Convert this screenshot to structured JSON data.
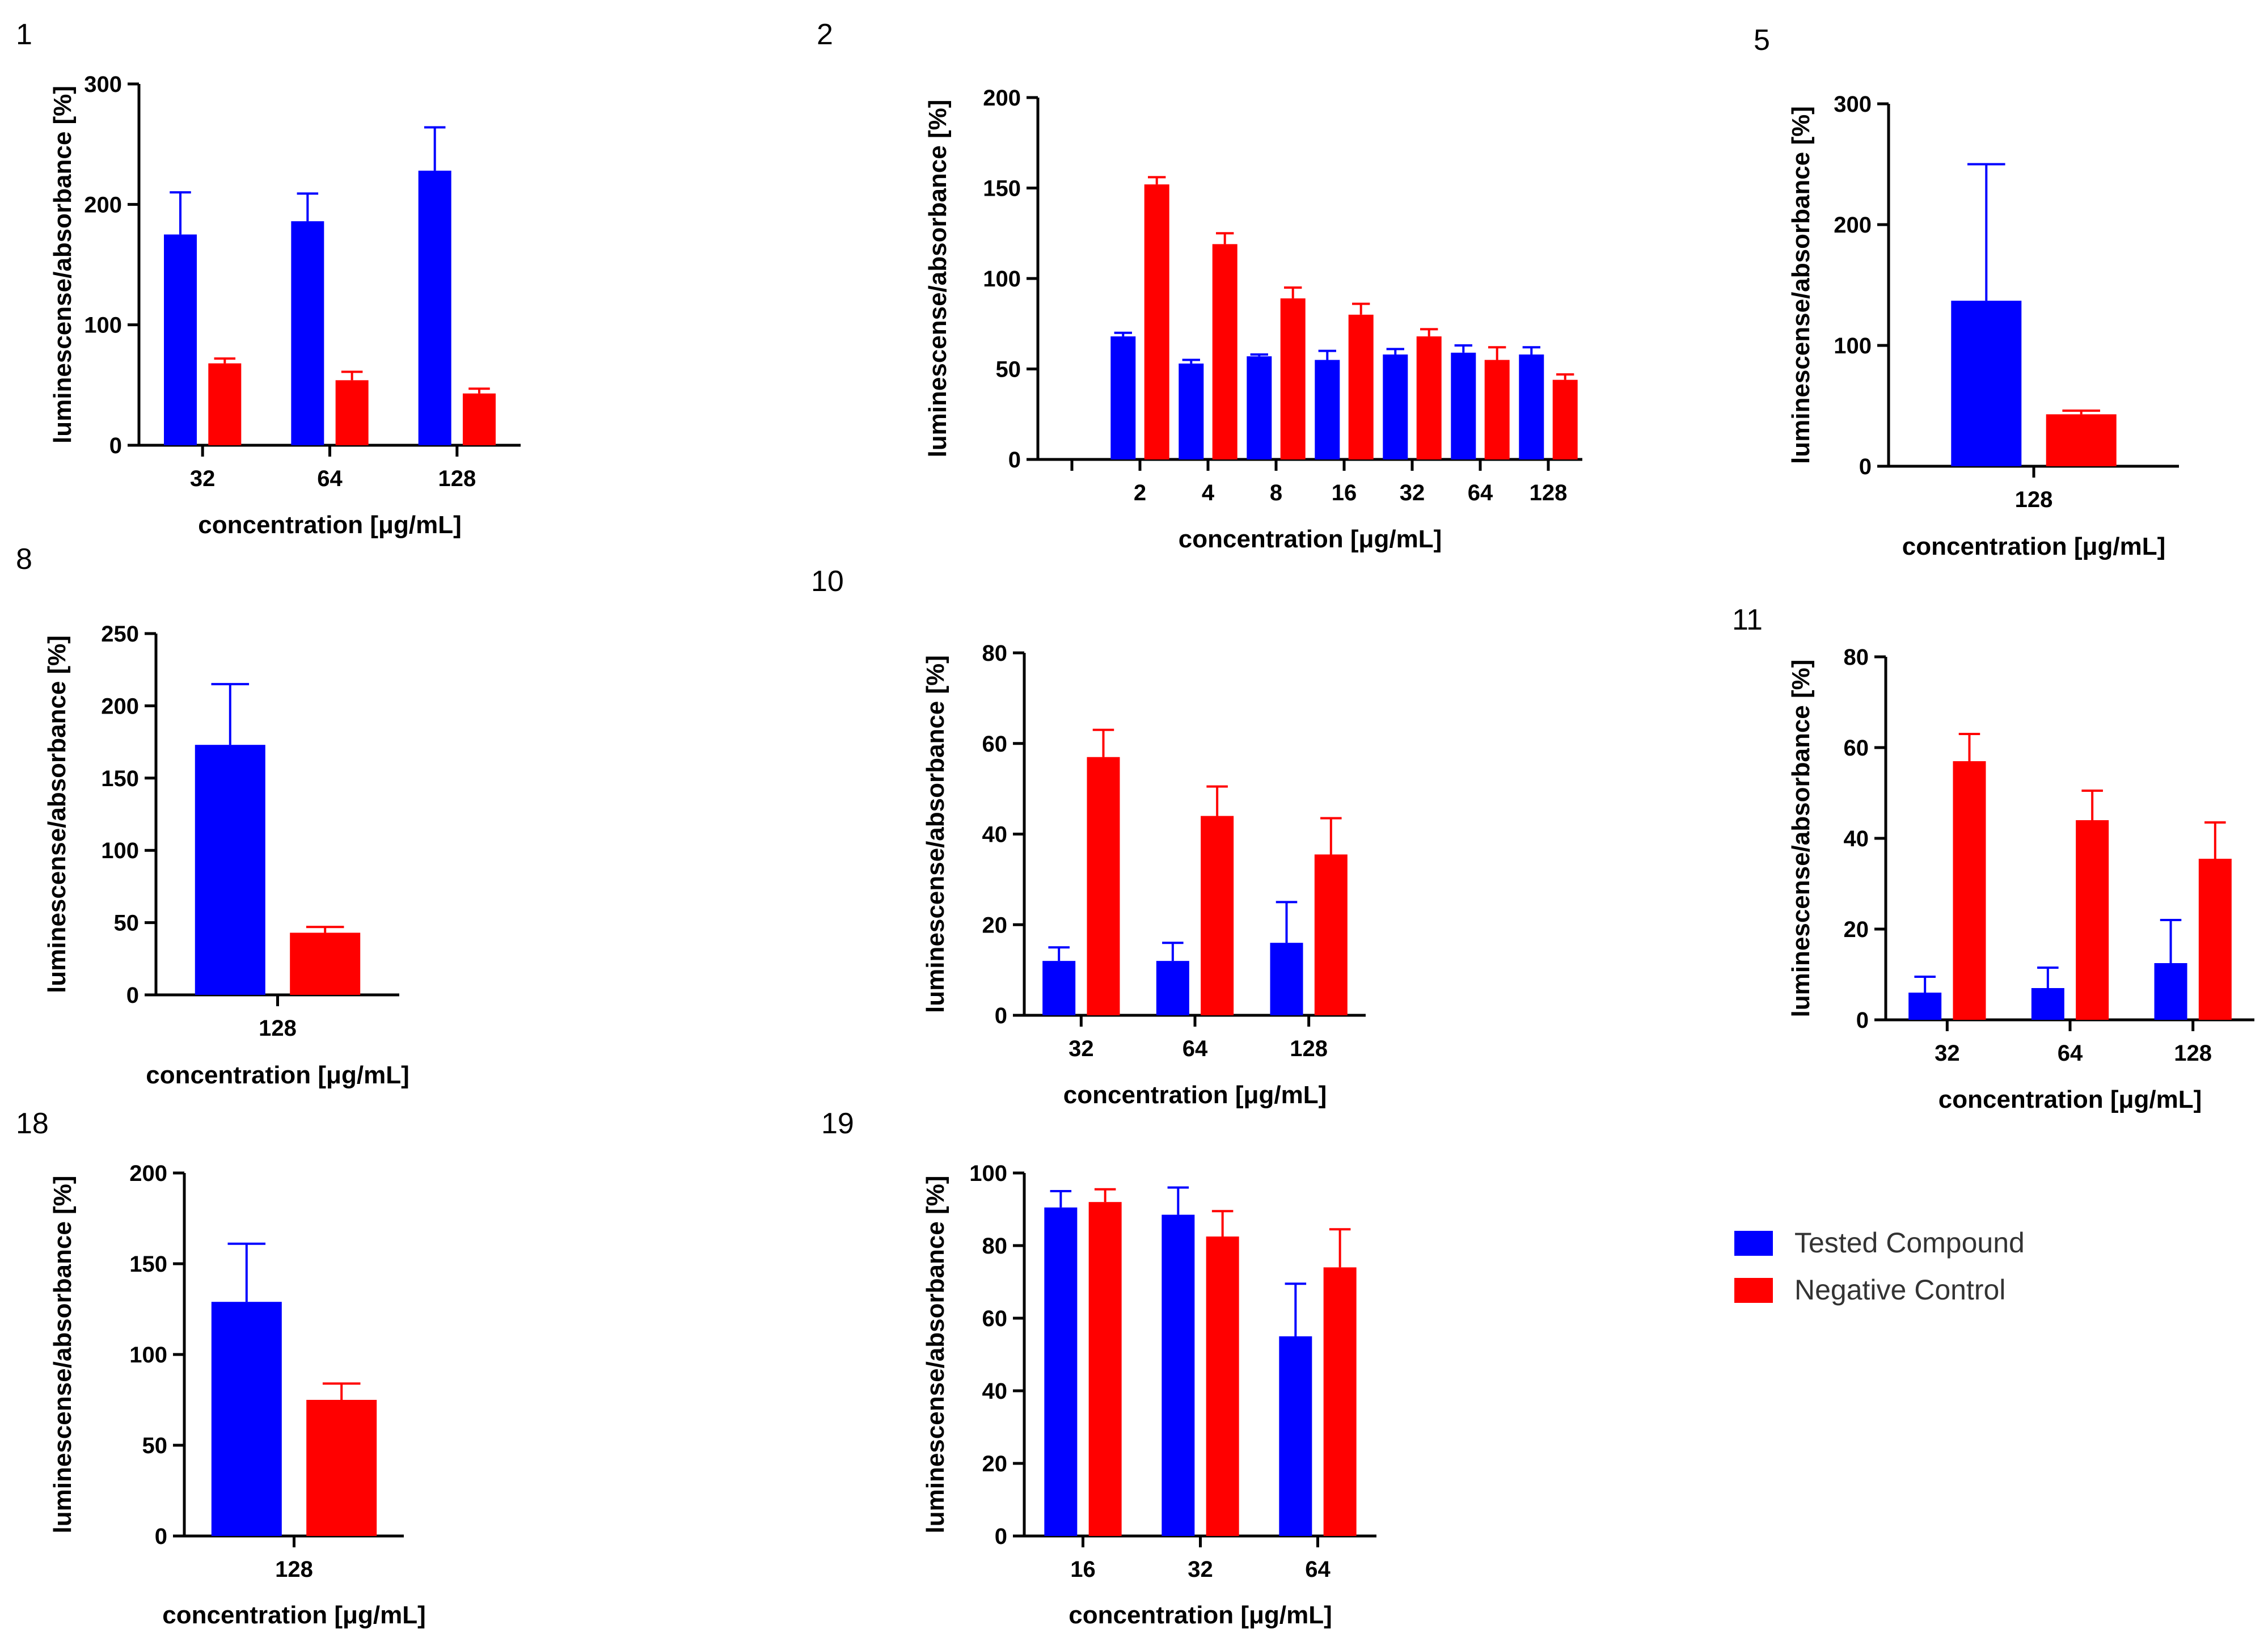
{
  "legend": {
    "items": [
      {
        "label": "Tested Compound",
        "color": "#0000ff"
      },
      {
        "label": "Negative Control",
        "color": "#ff0000"
      }
    ]
  },
  "chart_data": [
    {
      "panel": "1",
      "type": "bar",
      "categories": [
        "32",
        "64",
        "128"
      ],
      "series": [
        {
          "name": "Tested Compound",
          "values": [
            175,
            186,
            228
          ],
          "errors": [
            35,
            23,
            36
          ]
        },
        {
          "name": "Negative Control",
          "values": [
            68,
            54,
            43
          ],
          "errors": [
            4,
            7,
            4
          ]
        }
      ],
      "ylim": [
        0,
        300
      ],
      "yticks": [
        0,
        100,
        200,
        300
      ],
      "xlabel": "concentration [μg/mL]",
      "ylabel": "luminescense/absorbance [%]"
    },
    {
      "panel": "2",
      "type": "bar",
      "categories": [
        "",
        "2",
        "4",
        "8",
        "16",
        "32",
        "64",
        "128"
      ],
      "series": [
        {
          "name": "Tested Compound",
          "values": [
            null,
            68,
            53,
            57,
            55,
            58,
            59,
            58
          ],
          "errors": [
            null,
            2,
            2,
            1,
            5,
            3,
            4,
            4
          ]
        },
        {
          "name": "Negative Control",
          "values": [
            null,
            152,
            119,
            89,
            80,
            68,
            55,
            44
          ],
          "errors": [
            null,
            4,
            6,
            6,
            6,
            4,
            7,
            3
          ]
        }
      ],
      "ylim": [
        0,
        200
      ],
      "yticks": [
        0,
        50,
        100,
        150,
        200
      ],
      "xlabel": "concentration [μg/mL]",
      "ylabel": "luminescense/absorbance [%]"
    },
    {
      "panel": "5",
      "type": "bar",
      "categories": [
        "128"
      ],
      "series": [
        {
          "name": "Tested Compound",
          "values": [
            137
          ],
          "errors": [
            113
          ]
        },
        {
          "name": "Negative Control",
          "values": [
            43
          ],
          "errors": [
            3
          ]
        }
      ],
      "ylim": [
        0,
        300
      ],
      "yticks": [
        0,
        100,
        200,
        300
      ],
      "xlabel": "concentration [μg/mL]",
      "ylabel": "luminescense/absorbance [%]"
    },
    {
      "panel": "8",
      "type": "bar",
      "categories": [
        "128"
      ],
      "series": [
        {
          "name": "Tested Compound",
          "values": [
            173
          ],
          "errors": [
            42
          ]
        },
        {
          "name": "Negative Control",
          "values": [
            43
          ],
          "errors": [
            4
          ]
        }
      ],
      "ylim": [
        0,
        250
      ],
      "yticks": [
        0,
        50,
        100,
        150,
        200,
        250
      ],
      "xlabel": "concentration [μg/mL]",
      "ylabel": "luminescense/absorbance [%]"
    },
    {
      "panel": "10",
      "type": "bar",
      "categories": [
        "32",
        "64",
        "128"
      ],
      "series": [
        {
          "name": "Tested Compound",
          "values": [
            12,
            12,
            16
          ],
          "errors": [
            3,
            4,
            9
          ]
        },
        {
          "name": "Negative Control",
          "values": [
            57,
            44,
            35.5
          ],
          "errors": [
            6,
            6.5,
            8
          ]
        }
      ],
      "ylim": [
        0,
        80
      ],
      "yticks": [
        0,
        20,
        40,
        60,
        80
      ],
      "xlabel": "concentration [μg/mL]",
      "ylabel": "luminescense/absorbance [%]"
    },
    {
      "panel": "11",
      "type": "bar",
      "categories": [
        "32",
        "64",
        "128"
      ],
      "series": [
        {
          "name": "Tested Compound",
          "values": [
            6,
            7,
            12.5
          ],
          "errors": [
            3.5,
            4.5,
            9.5
          ]
        },
        {
          "name": "Negative Control",
          "values": [
            57,
            44,
            35.5
          ],
          "errors": [
            6,
            6.5,
            8
          ]
        }
      ],
      "ylim": [
        0,
        80
      ],
      "yticks": [
        0,
        20,
        40,
        60,
        80
      ],
      "xlabel": "concentration [μg/mL]",
      "ylabel": "luminescense/absorbance [%]"
    },
    {
      "panel": "18",
      "type": "bar",
      "categories": [
        "128"
      ],
      "series": [
        {
          "name": "Tested Compound",
          "values": [
            129
          ],
          "errors": [
            32
          ]
        },
        {
          "name": "Negative Control",
          "values": [
            75
          ],
          "errors": [
            9
          ]
        }
      ],
      "ylim": [
        0,
        200
      ],
      "yticks": [
        0,
        50,
        100,
        150,
        200
      ],
      "xlabel": "concentration [μg/mL]",
      "ylabel": "luminescense/absorbance [%]"
    },
    {
      "panel": "19",
      "type": "bar",
      "categories": [
        "16",
        "32",
        "64"
      ],
      "series": [
        {
          "name": "Tested Compound",
          "values": [
            90.5,
            88.5,
            55
          ],
          "errors": [
            4.5,
            7.5,
            14.5
          ]
        },
        {
          "name": "Negative Control",
          "values": [
            92,
            82.5,
            74
          ],
          "errors": [
            3.5,
            7,
            10.5
          ]
        }
      ],
      "ylim": [
        0,
        100
      ],
      "yticks": [
        0,
        20,
        40,
        60,
        80,
        100
      ],
      "xlabel": "concentration [μg/mL]",
      "ylabel": "luminescense/absorbance [%]"
    }
  ]
}
